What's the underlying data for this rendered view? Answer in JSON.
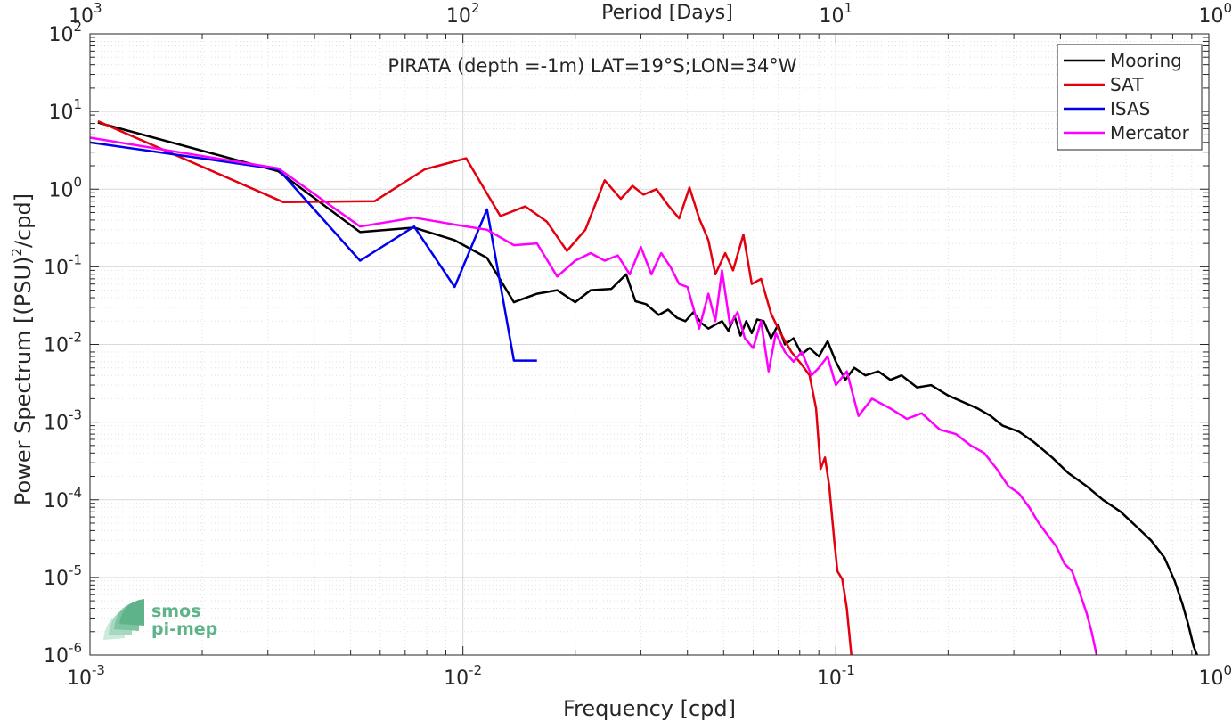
{
  "chart_data": {
    "type": "line",
    "title": "PIRATA (depth =-1m) LAT=19°S;LON=34°W",
    "xlabel": "Frequency [cpd]",
    "ylabel": "Power Spectrum [(PSU)²/cpd]",
    "ylabel_base": "Power Spectrum [(PSU)",
    "ylabel_sup": "2",
    "ylabel_tail": "/cpd]",
    "x2label": "Period [Days]",
    "xscale": "log",
    "yscale": "log",
    "xlim": [
      0.001,
      1
    ],
    "ylim": [
      1e-06,
      100
    ],
    "grid": true,
    "legend_position": "top-right",
    "x_ticks": [
      {
        "value": 0.001,
        "base": "10",
        "exp": "-3"
      },
      {
        "value": 0.01,
        "base": "10",
        "exp": "-2"
      },
      {
        "value": 0.1,
        "base": "10",
        "exp": "-1"
      },
      {
        "value": 1,
        "base": "10",
        "exp": "0"
      }
    ],
    "y_ticks": [
      {
        "value": 1e-06,
        "base": "10",
        "exp": "-6"
      },
      {
        "value": 1e-05,
        "base": "10",
        "exp": "-5"
      },
      {
        "value": 0.0001,
        "base": "10",
        "exp": "-4"
      },
      {
        "value": 0.001,
        "base": "10",
        "exp": "-3"
      },
      {
        "value": 0.01,
        "base": "10",
        "exp": "-2"
      },
      {
        "value": 0.1,
        "base": "10",
        "exp": "-1"
      },
      {
        "value": 1,
        "base": "10",
        "exp": "0"
      },
      {
        "value": 10,
        "base": "10",
        "exp": "1"
      },
      {
        "value": 100,
        "base": "10",
        "exp": "2"
      }
    ],
    "x2_ticks": [
      {
        "value": 1000,
        "base": "10",
        "exp": "3"
      },
      {
        "value": 100,
        "base": "10",
        "exp": "2"
      },
      {
        "value": 10,
        "base": "10",
        "exp": "1"
      },
      {
        "value": 1,
        "base": "10",
        "exp": "0"
      }
    ],
    "series": [
      {
        "name": "Mooring",
        "color": "#000000",
        "points": [
          [
            0.00105,
            7.2
          ],
          [
            0.0032,
            1.7
          ],
          [
            0.0053,
            0.28
          ],
          [
            0.0074,
            0.32
          ],
          [
            0.0095,
            0.22
          ],
          [
            0.0116,
            0.13
          ],
          [
            0.0137,
            0.035
          ],
          [
            0.0158,
            0.045
          ],
          [
            0.0179,
            0.05
          ],
          [
            0.02,
            0.035
          ],
          [
            0.022,
            0.05
          ],
          [
            0.025,
            0.052
          ],
          [
            0.0274,
            0.08
          ],
          [
            0.029,
            0.036
          ],
          [
            0.031,
            0.033
          ],
          [
            0.0335,
            0.024
          ],
          [
            0.0355,
            0.028
          ],
          [
            0.0375,
            0.022
          ],
          [
            0.0395,
            0.02
          ],
          [
            0.0415,
            0.026
          ],
          [
            0.0435,
            0.019
          ],
          [
            0.0455,
            0.016
          ],
          [
            0.0475,
            0.018
          ],
          [
            0.0495,
            0.02
          ],
          [
            0.0515,
            0.015
          ],
          [
            0.0535,
            0.023
          ],
          [
            0.0555,
            0.013
          ],
          [
            0.0575,
            0.02
          ],
          [
            0.0595,
            0.014
          ],
          [
            0.0615,
            0.021
          ],
          [
            0.064,
            0.02
          ],
          [
            0.067,
            0.012
          ],
          [
            0.07,
            0.018
          ],
          [
            0.073,
            0.01
          ],
          [
            0.077,
            0.012
          ],
          [
            0.081,
            0.0075
          ],
          [
            0.085,
            0.009
          ],
          [
            0.09,
            0.007
          ],
          [
            0.095,
            0.011
          ],
          [
            0.1,
            0.006
          ],
          [
            0.106,
            0.0035
          ],
          [
            0.112,
            0.005
          ],
          [
            0.12,
            0.004
          ],
          [
            0.13,
            0.0045
          ],
          [
            0.14,
            0.0035
          ],
          [
            0.15,
            0.004
          ],
          [
            0.165,
            0.0028
          ],
          [
            0.18,
            0.003
          ],
          [
            0.2,
            0.0022
          ],
          [
            0.22,
            0.0018
          ],
          [
            0.24,
            0.0015
          ],
          [
            0.26,
            0.0012
          ],
          [
            0.28,
            0.0009
          ],
          [
            0.31,
            0.00075
          ],
          [
            0.34,
            0.00055
          ],
          [
            0.38,
            0.00035
          ],
          [
            0.42,
            0.00022
          ],
          [
            0.47,
            0.00015
          ],
          [
            0.52,
            0.0001
          ],
          [
            0.58,
            7e-05
          ],
          [
            0.64,
            4.5e-05
          ],
          [
            0.7,
            3e-05
          ],
          [
            0.76,
            1.8e-05
          ],
          [
            0.81,
            9e-06
          ],
          [
            0.85,
            4.5e-06
          ],
          [
            0.88,
            2.5e-06
          ],
          [
            0.91,
            1.3e-06
          ],
          [
            0.93,
            1e-06
          ]
        ]
      },
      {
        "name": "SAT",
        "color": "#e3000f",
        "points": [
          [
            0.00105,
            7.5
          ],
          [
            0.0033,
            0.68
          ],
          [
            0.0058,
            0.7
          ],
          [
            0.0079,
            1.8
          ],
          [
            0.0102,
            2.5
          ],
          [
            0.0126,
            0.45
          ],
          [
            0.0147,
            0.6
          ],
          [
            0.0168,
            0.38
          ],
          [
            0.019,
            0.16
          ],
          [
            0.0213,
            0.3
          ],
          [
            0.024,
            1.3
          ],
          [
            0.0265,
            0.75
          ],
          [
            0.0285,
            1.1
          ],
          [
            0.0305,
            0.85
          ],
          [
            0.033,
            1.0
          ],
          [
            0.0355,
            0.62
          ],
          [
            0.038,
            0.42
          ],
          [
            0.0405,
            1.05
          ],
          [
            0.043,
            0.42
          ],
          [
            0.0455,
            0.22
          ],
          [
            0.0475,
            0.08
          ],
          [
            0.0505,
            0.15
          ],
          [
            0.053,
            0.09
          ],
          [
            0.0565,
            0.26
          ],
          [
            0.0595,
            0.06
          ],
          [
            0.063,
            0.07
          ],
          [
            0.067,
            0.025
          ],
          [
            0.071,
            0.014
          ],
          [
            0.076,
            0.008
          ],
          [
            0.081,
            0.0055
          ],
          [
            0.085,
            0.004
          ],
          [
            0.0885,
            0.0015
          ],
          [
            0.091,
            0.00025
          ],
          [
            0.0935,
            0.00035
          ],
          [
            0.096,
            0.00015
          ],
          [
            0.099,
            3e-05
          ],
          [
            0.101,
            1.2e-05
          ],
          [
            0.104,
            9.5e-06
          ],
          [
            0.107,
            4e-06
          ],
          [
            0.11,
            1e-06
          ]
        ]
      },
      {
        "name": "ISAS",
        "color": "#0000ee",
        "points": [
          [
            0.001,
            4.0
          ],
          [
            0.0032,
            1.8
          ],
          [
            0.0053,
            0.12
          ],
          [
            0.0074,
            0.33
          ],
          [
            0.0095,
            0.055
          ],
          [
            0.0116,
            0.55
          ],
          [
            0.0137,
            0.0062
          ],
          [
            0.0158,
            0.0062
          ]
        ]
      },
      {
        "name": "Mercator",
        "color": "#ff00ff",
        "points": [
          [
            0.001,
            4.6
          ],
          [
            0.0032,
            1.85
          ],
          [
            0.0053,
            0.33
          ],
          [
            0.0074,
            0.43
          ],
          [
            0.0095,
            0.35
          ],
          [
            0.0116,
            0.3
          ],
          [
            0.0137,
            0.19
          ],
          [
            0.0158,
            0.2
          ],
          [
            0.0179,
            0.075
          ],
          [
            0.02,
            0.12
          ],
          [
            0.022,
            0.15
          ],
          [
            0.024,
            0.12
          ],
          [
            0.026,
            0.14
          ],
          [
            0.028,
            0.08
          ],
          [
            0.03,
            0.18
          ],
          [
            0.032,
            0.08
          ],
          [
            0.034,
            0.15
          ],
          [
            0.036,
            0.1
          ],
          [
            0.038,
            0.06
          ],
          [
            0.04,
            0.055
          ],
          [
            0.043,
            0.016
          ],
          [
            0.0455,
            0.045
          ],
          [
            0.0475,
            0.02
          ],
          [
            0.0495,
            0.09
          ],
          [
            0.052,
            0.018
          ],
          [
            0.0545,
            0.026
          ],
          [
            0.057,
            0.012
          ],
          [
            0.06,
            0.009
          ],
          [
            0.063,
            0.02
          ],
          [
            0.066,
            0.0045
          ],
          [
            0.069,
            0.014
          ],
          [
            0.073,
            0.008
          ],
          [
            0.077,
            0.006
          ],
          [
            0.081,
            0.008
          ],
          [
            0.086,
            0.004
          ],
          [
            0.09,
            0.005
          ],
          [
            0.095,
            0.007
          ],
          [
            0.1,
            0.003
          ],
          [
            0.107,
            0.0045
          ],
          [
            0.115,
            0.0012
          ],
          [
            0.125,
            0.002
          ],
          [
            0.14,
            0.0015
          ],
          [
            0.155,
            0.0011
          ],
          [
            0.17,
            0.0013
          ],
          [
            0.19,
            0.0008
          ],
          [
            0.21,
            0.0007
          ],
          [
            0.23,
            0.0005
          ],
          [
            0.25,
            0.0004
          ],
          [
            0.27,
            0.00025
          ],
          [
            0.29,
            0.00015
          ],
          [
            0.31,
            0.00012
          ],
          [
            0.33,
            8e-05
          ],
          [
            0.35,
            5e-05
          ],
          [
            0.37,
            3.5e-05
          ],
          [
            0.39,
            2.5e-05
          ],
          [
            0.41,
            1.5e-05
          ],
          [
            0.43,
            1.2e-05
          ],
          [
            0.45,
            6.5e-06
          ],
          [
            0.47,
            3.5e-06
          ],
          [
            0.485,
            2e-06
          ],
          [
            0.5,
            1e-06
          ]
        ]
      }
    ]
  },
  "watermark": {
    "line1": "smos",
    "line2": "pi-mep",
    "color": "#5fb38a"
  }
}
